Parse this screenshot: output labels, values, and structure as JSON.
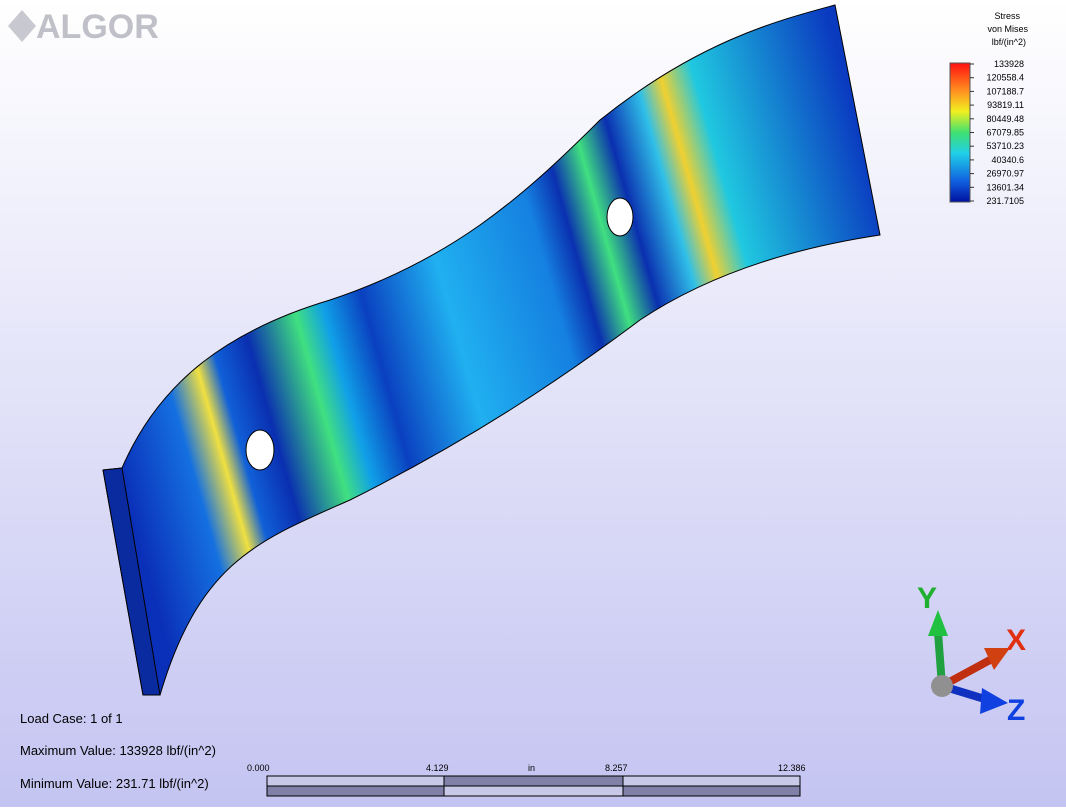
{
  "logo": "ALGOR",
  "legend": {
    "title": [
      "Stress",
      "von Mises",
      "lbf/(in^2)"
    ],
    "labels": [
      "133928",
      "120558.4",
      "107188.7",
      "93819.11",
      "80449.48",
      "67079.85",
      "53710.23",
      "40340.6",
      "26970.97",
      "13601.34",
      "231.7105"
    ]
  },
  "info": {
    "load_case": "Load Case:  1 of 1",
    "max": "Maximum Value: 133928 lbf/(in^2)",
    "min": "Minimum Value: 231.71 lbf/(in^2)"
  },
  "scale_bar": {
    "ticks": [
      "0.000",
      "4.129",
      "8.257",
      "12.386"
    ],
    "unit": "in"
  },
  "axes": {
    "x": "X",
    "y": "Y",
    "z": "Z"
  }
}
